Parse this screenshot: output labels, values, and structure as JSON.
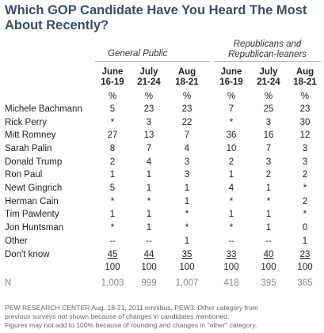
{
  "title_line1": "Which GOP Candidate Have You Heard The Most",
  "title_line2": "About Recently?",
  "groups": {
    "general": "General Public",
    "rep_line1": "Republicans and",
    "rep_line2": "Republican-leaners"
  },
  "columns": [
    {
      "m": "June",
      "d": "16-19"
    },
    {
      "m": "July",
      "d": "21-24"
    },
    {
      "m": "Aug",
      "d": "18-21"
    },
    {
      "m": "June",
      "d": "16-19"
    },
    {
      "m": "July",
      "d": "21-24"
    },
    {
      "m": "Aug",
      "d": "18-21"
    }
  ],
  "rows": [
    {
      "label": "",
      "values": [
        "%",
        "%",
        "%",
        "%",
        "%",
        "%"
      ]
    },
    {
      "label": "Michele Bachmann",
      "values": [
        "5",
        "23",
        "23",
        "7",
        "25",
        "23"
      ]
    },
    {
      "label": "Rick Perry",
      "values": [
        "*",
        "3",
        "22",
        "*",
        "3",
        "30"
      ]
    },
    {
      "label": "Mitt Romney",
      "values": [
        "27",
        "13",
        "7",
        "36",
        "16",
        "12"
      ]
    },
    {
      "label": "Sarah Palin",
      "values": [
        "8",
        "7",
        "4",
        "10",
        "7",
        "3"
      ]
    },
    {
      "label": "Donald Trump",
      "values": [
        "2",
        "4",
        "3",
        "2",
        "3",
        "3"
      ]
    },
    {
      "label": "Ron Paul",
      "values": [
        "1",
        "1",
        "3",
        "1",
        "2",
        "2"
      ]
    },
    {
      "label": "Newt Gingrich",
      "values": [
        "5",
        "1",
        "1",
        "4",
        "1",
        "*"
      ]
    },
    {
      "label": "Herman Cain",
      "values": [
        "*",
        "*",
        "1",
        "*",
        "*",
        "2"
      ]
    },
    {
      "label": "Tim Pawlenty",
      "values": [
        "1",
        "1",
        "*",
        "1",
        "1",
        "*"
      ]
    },
    {
      "label": "Jon Huntsman",
      "values": [
        "*",
        "1",
        "*",
        "*",
        "1",
        "0"
      ]
    },
    {
      "label": "Other",
      "values": [
        "--",
        "--",
        "1",
        "--",
        "--",
        "1"
      ]
    },
    {
      "label": "Don't know",
      "values": [
        "45",
        "44",
        "35",
        "33",
        "40",
        "23"
      ]
    },
    {
      "label": "",
      "values": [
        "100",
        "100",
        "100",
        "100",
        "100",
        "100"
      ]
    },
    {
      "label": "N",
      "values": [
        "1,003",
        "999",
        "1,007",
        "418",
        "395",
        "365"
      ]
    }
  ],
  "footer": [
    "PEW RESEARCH CENTER Aug. 18-21, 2011 omnibus. PEW3. Other category from",
    "previous surveys not shown because of changes in candidates mentioned.",
    "Figures may not add to 100% because of rounding and changes in \"other\" category."
  ]
}
